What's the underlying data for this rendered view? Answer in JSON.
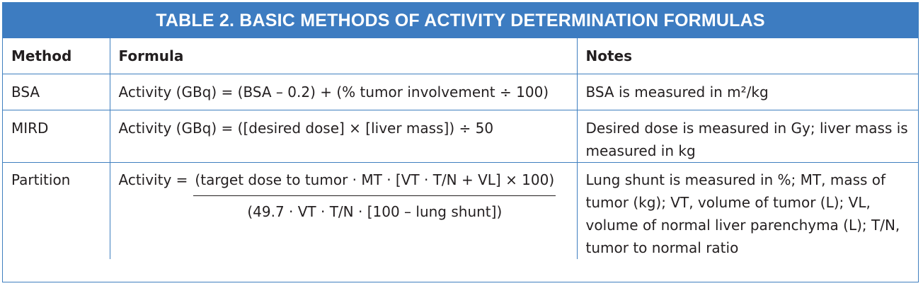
{
  "title": "TABLE 2.  BASIC METHODS OF ACTIVITY DETERMINATION FORMULAS",
  "headers": {
    "method": "Method",
    "formula": "Formula",
    "notes": "Notes"
  },
  "rows": {
    "bsa": {
      "method": "BSA",
      "formula": "Activity (GBq) = (BSA – 0.2) + (% tumor involvement ÷ 100)",
      "notes": "BSA is measured in m²/kg"
    },
    "mird": {
      "method": "MIRD",
      "formula": "Activity (GBq) = ([desired dose] × [liver mass]) ÷ 50",
      "notes": "Desired dose is measured in Gy; liver mass is measured in kg"
    },
    "partition": {
      "method": "Partition",
      "formula_lhs": "Activity =",
      "formula_numerator": "(target dose to tumor · MT · [VT · T/N + VL] × 100)",
      "formula_denominator": "(49.7 · VT · T/N · [100 – lung shunt])",
      "notes": "Lung shunt is measured in %; MT, mass of tumor (kg); VT, volume of tumor (L); VL, volume of normal liver parenchyma (L); T/N, tumor to normal ratio"
    }
  }
}
